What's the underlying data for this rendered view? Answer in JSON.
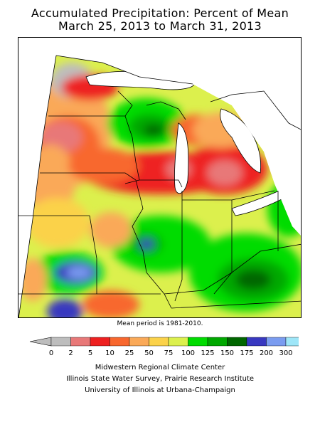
{
  "title": {
    "line1": "Accumulated Precipitation: Percent of Mean",
    "line2": "March 25, 2013 to March 31, 2013"
  },
  "mean_period": "Mean period is 1981-2010.",
  "legend": {
    "breaks": [
      "0",
      "2",
      "5",
      "10",
      "25",
      "50",
      "75",
      "100",
      "125",
      "150",
      "175",
      "200",
      "300"
    ],
    "colors": [
      "#bdbdbd",
      "#e87878",
      "#ee2020",
      "#f8672e",
      "#faa958",
      "#fbd24a",
      "#dcf04d",
      "#00dc00",
      "#00a800",
      "#006600",
      "#3838c0",
      "#7a9cf0",
      "#9ee6f8"
    ],
    "arrow_color": "#bdbdbd"
  },
  "credits": [
    "Midwestern Regional Climate Center",
    "Illinois State Water Survey, Prairie Research Institute",
    "University of Illinois at Urbana-Champaign"
  ],
  "map": {
    "region": "Midwest United States",
    "background_color": "#ffffff",
    "lake_color": "#ffffff",
    "border_color": "#000000"
  }
}
